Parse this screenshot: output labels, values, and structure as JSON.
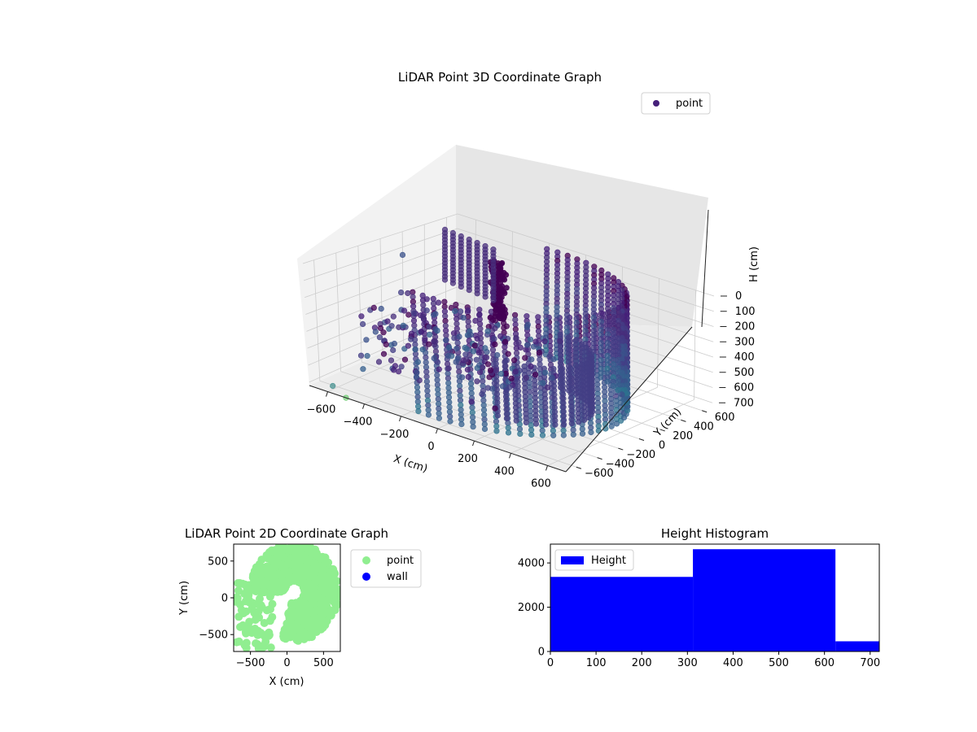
{
  "chart_data": [
    {
      "type": "scatter3d",
      "title": "LiDAR Point 3D Coordinate Graph",
      "xlabel": "X (cm)",
      "ylabel": "Y (cm)",
      "zlabel": "H (cm)",
      "xticks": [
        -600,
        -400,
        -200,
        0,
        200,
        400,
        600
      ],
      "yticks": [
        -600,
        -400,
        -200,
        0,
        200,
        400,
        600
      ],
      "zticks": [
        0,
        100,
        200,
        300,
        400,
        500,
        600,
        700
      ],
      "xlim": [
        -700,
        700
      ],
      "ylim": [
        -700,
        700
      ],
      "zlim": [
        0,
        720
      ],
      "z_axis_inverted": true,
      "colormap": "viridis",
      "legend": {
        "entries": [
          "point"
        ],
        "location": "upper-right"
      },
      "series": [
        {
          "name": "point",
          "color": "#46207a",
          "structures": [
            {
              "kind": "arc-wall",
              "description": "dense curved wall of points",
              "x_range": [
                -100,
                620
              ],
              "y_range": [
                -620,
                620
              ],
              "z_range": [
                0,
                720
              ]
            },
            {
              "kind": "pillar",
              "x": -200,
              "y": 150,
              "z_range": [
                0,
                350
              ]
            },
            {
              "kind": "column-rows",
              "x_range": [
                -650,
                -250
              ],
              "y_range": [
                200,
                450
              ],
              "z_range": [
                0,
                360
              ]
            },
            {
              "kind": "scattered-clusters",
              "x_range": [
                -700,
                100
              ],
              "y_range": [
                -300,
                300
              ],
              "z_range": [
                350,
                720
              ]
            }
          ]
        }
      ]
    },
    {
      "type": "scatter",
      "title": "LiDAR Point 2D Coordinate Graph",
      "xlabel": "X (cm)",
      "ylabel": "Y (cm)",
      "xticks": [
        -500,
        0,
        500
      ],
      "yticks": [
        -500,
        0,
        500
      ],
      "xlim": [
        -730,
        730
      ],
      "ylim": [
        -730,
        730
      ],
      "legend": {
        "entries": [
          "point",
          "wall"
        ],
        "location": "outside-right"
      },
      "series": [
        {
          "name": "point",
          "color": "#90ee90"
        },
        {
          "name": "wall",
          "color": "#0000ff"
        }
      ]
    },
    {
      "type": "bar",
      "title": "Height Histogram",
      "xlabel": "",
      "ylabel": "",
      "xticks": [
        0,
        100,
        200,
        300,
        400,
        500,
        600,
        700
      ],
      "yticks": [
        0,
        2000,
        4000
      ],
      "xlim": [
        0,
        720
      ],
      "ylim": [
        0,
        4850
      ],
      "legend": {
        "entries": [
          "Height"
        ],
        "location": "upper-left"
      },
      "series": [
        {
          "name": "Height",
          "color": "#0000ff",
          "bins": [
            {
              "start": 0,
              "end": 312,
              "count": 3370
            },
            {
              "start": 312,
              "end": 624,
              "count": 4620
            },
            {
              "start": 624,
              "end": 720,
              "count": 460
            }
          ]
        }
      ]
    }
  ]
}
